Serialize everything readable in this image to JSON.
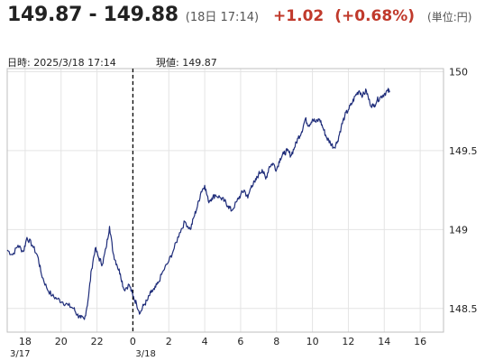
{
  "header": {
    "price": "149.87 - 149.88",
    "time": "(18日 17:14)",
    "change": "+1.02",
    "change_pct": "(+0.68%)",
    "unit": "(単位:円)"
  },
  "info": {
    "datetime": "日時: 2025/3/18  17:14",
    "current": "現値: 149.87"
  },
  "colors": {
    "line": "#1f2d7a",
    "grid": "#e4e4e4",
    "change": "#c0392b"
  },
  "chart_data": {
    "type": "line",
    "x_unit": "hours since 2025/3/17 17:00",
    "x_range": [
      0,
      24.3
    ],
    "ylim": [
      148.35,
      150.02
    ],
    "y_ticks": [
      148.5,
      149,
      149.5,
      150
    ],
    "y_tick_labels": [
      "148.5",
      "149",
      "149.5",
      "150"
    ],
    "x_ticks": [
      1,
      3,
      5,
      7,
      9,
      11,
      13,
      15,
      17,
      19,
      21,
      23
    ],
    "x_tick_labels": [
      "18",
      "20",
      "22",
      "0",
      "2",
      "4",
      "6",
      "8",
      "10",
      "12",
      "14",
      "16"
    ],
    "date_labels": [
      {
        "x": 0,
        "label": "3/17"
      },
      {
        "x": 7,
        "label": "3/18"
      }
    ],
    "divider_x": 7,
    "grid": true,
    "series": [
      {
        "points": [
          [
            0,
            148.87
          ],
          [
            0.3,
            148.84
          ],
          [
            0.6,
            148.9
          ],
          [
            0.9,
            148.86
          ],
          [
            1.1,
            148.95
          ],
          [
            1.4,
            148.9
          ],
          [
            1.7,
            148.83
          ],
          [
            1.9,
            148.72
          ],
          [
            2.2,
            148.63
          ],
          [
            2.5,
            148.58
          ],
          [
            2.8,
            148.56
          ],
          [
            3.1,
            148.54
          ],
          [
            3.4,
            148.52
          ],
          [
            3.7,
            148.5
          ],
          [
            3.9,
            148.46
          ],
          [
            4.1,
            148.44
          ],
          [
            4.3,
            148.43
          ],
          [
            4.5,
            148.55
          ],
          [
            4.7,
            148.75
          ],
          [
            4.9,
            148.88
          ],
          [
            5.1,
            148.82
          ],
          [
            5.3,
            148.78
          ],
          [
            5.5,
            148.88
          ],
          [
            5.7,
            149.02
          ],
          [
            5.9,
            148.85
          ],
          [
            6.1,
            148.78
          ],
          [
            6.3,
            148.72
          ],
          [
            6.5,
            148.62
          ],
          [
            6.8,
            148.65
          ],
          [
            7.0,
            148.58
          ],
          [
            7.2,
            148.53
          ],
          [
            7.4,
            148.47
          ],
          [
            7.6,
            148.52
          ],
          [
            7.8,
            148.55
          ],
          [
            8.0,
            148.6
          ],
          [
            8.2,
            148.62
          ],
          [
            8.4,
            148.66
          ],
          [
            8.7,
            148.74
          ],
          [
            9.0,
            148.8
          ],
          [
            9.3,
            148.88
          ],
          [
            9.6,
            148.98
          ],
          [
            9.9,
            149.05
          ],
          [
            10.2,
            149.0
          ],
          [
            10.4,
            149.08
          ],
          [
            10.6,
            149.15
          ],
          [
            10.8,
            149.24
          ],
          [
            11.0,
            149.28
          ],
          [
            11.2,
            149.18
          ],
          [
            11.4,
            149.2
          ],
          [
            11.6,
            149.22
          ],
          [
            11.9,
            149.2
          ],
          [
            12.1,
            149.18
          ],
          [
            12.3,
            149.15
          ],
          [
            12.5,
            149.12
          ],
          [
            12.8,
            149.18
          ],
          [
            13.0,
            149.22
          ],
          [
            13.2,
            149.25
          ],
          [
            13.4,
            149.2
          ],
          [
            13.6,
            149.28
          ],
          [
            13.8,
            149.3
          ],
          [
            14.0,
            149.35
          ],
          [
            14.2,
            149.38
          ],
          [
            14.4,
            149.32
          ],
          [
            14.6,
            149.4
          ],
          [
            14.8,
            149.42
          ],
          [
            15.0,
            149.38
          ],
          [
            15.2,
            149.45
          ],
          [
            15.4,
            149.48
          ],
          [
            15.6,
            149.5
          ],
          [
            15.8,
            149.47
          ],
          [
            16.0,
            149.52
          ],
          [
            16.2,
            149.58
          ],
          [
            16.4,
            149.62
          ],
          [
            16.6,
            149.7
          ],
          [
            16.8,
            149.66
          ],
          [
            17.0,
            149.7
          ],
          [
            17.2,
            149.68
          ],
          [
            17.4,
            149.7
          ],
          [
            17.6,
            149.64
          ],
          [
            17.8,
            149.58
          ],
          [
            18.0,
            149.55
          ],
          [
            18.2,
            149.52
          ],
          [
            18.4,
            149.56
          ],
          [
            18.6,
            149.65
          ],
          [
            18.8,
            149.72
          ],
          [
            19.0,
            149.76
          ],
          [
            19.2,
            149.8
          ],
          [
            19.4,
            149.85
          ],
          [
            19.6,
            149.88
          ],
          [
            19.8,
            149.85
          ],
          [
            20.0,
            149.88
          ],
          [
            20.2,
            149.8
          ],
          [
            20.4,
            149.78
          ],
          [
            20.6,
            149.82
          ],
          [
            20.8,
            149.84
          ],
          [
            21.0,
            149.86
          ],
          [
            21.2,
            149.88
          ],
          [
            21.3,
            149.87
          ]
        ]
      }
    ]
  }
}
